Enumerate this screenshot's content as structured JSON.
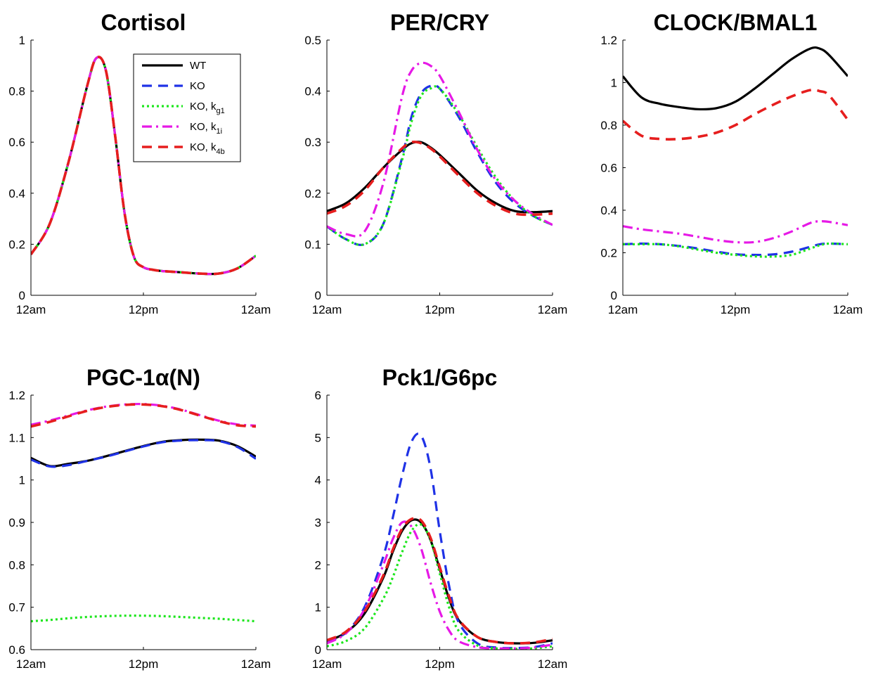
{
  "legend": {
    "entries": [
      {
        "text": "WT",
        "sub": ""
      },
      {
        "text": "KO",
        "sub": ""
      },
      {
        "text": "KO, k",
        "sub": "g1"
      },
      {
        "text": "KO, k",
        "sub": "1i"
      },
      {
        "text": "KO, k",
        "sub": "4b"
      }
    ]
  },
  "styles": {
    "WT": {
      "color": "#000000",
      "dash": "",
      "width": 3.2
    },
    "KO": {
      "color": "#1f32e6",
      "dash": "14,9",
      "width": 3.2
    },
    "KO_kg1": {
      "color": "#1ee61e",
      "dash": "3,4",
      "width": 3.2
    },
    "KO_k1i": {
      "color": "#e619e6",
      "dash": "14,6,3,6",
      "width": 3.2
    },
    "KO_k4b": {
      "color": "#e61e1e",
      "dash": "14,9",
      "width": 3.6
    }
  },
  "chart_data": [
    {
      "type": "line",
      "title": "Cortisol",
      "x_ticks": [
        "12am",
        "12pm",
        "12am"
      ],
      "xlim": [
        0,
        24
      ],
      "ylim": [
        0,
        1
      ],
      "y_ticks": [
        "0",
        "0.2",
        "0.4",
        "0.6",
        "0.8",
        "1"
      ],
      "y_tick_values": [
        0,
        0.2,
        0.4,
        0.6,
        0.8,
        1
      ],
      "x": [
        0,
        2,
        4,
        6,
        7,
        8,
        9,
        10,
        11,
        12,
        13,
        14,
        16,
        18,
        20,
        22,
        24
      ],
      "series": [
        {
          "key": "WT",
          "values": [
            0.16,
            0.28,
            0.52,
            0.82,
            0.93,
            0.88,
            0.62,
            0.32,
            0.15,
            0.11,
            0.1,
            0.095,
            0.09,
            0.085,
            0.085,
            0.105,
            0.155
          ]
        },
        {
          "key": "KO",
          "values": [
            0.16,
            0.28,
            0.52,
            0.82,
            0.93,
            0.88,
            0.62,
            0.32,
            0.15,
            0.11,
            0.1,
            0.095,
            0.09,
            0.085,
            0.085,
            0.105,
            0.155
          ]
        },
        {
          "key": "KO_kg1",
          "values": [
            0.16,
            0.28,
            0.52,
            0.82,
            0.93,
            0.88,
            0.62,
            0.32,
            0.15,
            0.11,
            0.1,
            0.095,
            0.09,
            0.085,
            0.085,
            0.105,
            0.155
          ]
        },
        {
          "key": "KO_k1i",
          "values": [
            0.16,
            0.28,
            0.52,
            0.82,
            0.93,
            0.88,
            0.62,
            0.32,
            0.15,
            0.11,
            0.1,
            0.095,
            0.09,
            0.085,
            0.085,
            0.105,
            0.155
          ]
        },
        {
          "key": "KO_k4b",
          "values": [
            0.16,
            0.28,
            0.52,
            0.82,
            0.93,
            0.88,
            0.62,
            0.32,
            0.15,
            0.11,
            0.1,
            0.095,
            0.09,
            0.085,
            0.085,
            0.105,
            0.155
          ]
        }
      ]
    },
    {
      "type": "line",
      "title": "PER/CRY",
      "x_ticks": [
        "12am",
        "12pm",
        "12am"
      ],
      "xlim": [
        0,
        24
      ],
      "ylim": [
        0,
        0.5
      ],
      "y_ticks": [
        "0",
        "0.1",
        "0.2",
        "0.3",
        "0.4",
        "0.5"
      ],
      "y_tick_values": [
        0,
        0.1,
        0.2,
        0.3,
        0.4,
        0.5
      ],
      "x": [
        0,
        2,
        4,
        6,
        8,
        9,
        10,
        11,
        12,
        14,
        16,
        18,
        20,
        22,
        24
      ],
      "series": [
        {
          "key": "WT",
          "values": [
            0.165,
            0.18,
            0.21,
            0.25,
            0.285,
            0.298,
            0.3,
            0.29,
            0.275,
            0.24,
            0.205,
            0.18,
            0.165,
            0.163,
            0.165
          ]
        },
        {
          "key": "KO",
          "values": [
            0.135,
            0.11,
            0.1,
            0.14,
            0.27,
            0.35,
            0.395,
            0.41,
            0.405,
            0.35,
            0.28,
            0.22,
            0.18,
            0.155,
            0.138
          ]
        },
        {
          "key": "KO_kg1",
          "values": [
            0.135,
            0.11,
            0.1,
            0.14,
            0.265,
            0.34,
            0.39,
            0.405,
            0.405,
            0.355,
            0.29,
            0.23,
            0.185,
            0.155,
            0.138
          ]
        },
        {
          "key": "KO_k1i",
          "values": [
            0.135,
            0.12,
            0.125,
            0.22,
            0.39,
            0.44,
            0.455,
            0.45,
            0.43,
            0.36,
            0.285,
            0.225,
            0.185,
            0.158,
            0.138
          ]
        },
        {
          "key": "KO_k4b",
          "values": [
            0.16,
            0.175,
            0.205,
            0.25,
            0.288,
            0.3,
            0.298,
            0.288,
            0.272,
            0.235,
            0.2,
            0.175,
            0.16,
            0.158,
            0.16
          ]
        }
      ]
    },
    {
      "type": "line",
      "title": "CLOCK/BMAL1",
      "x_ticks": [
        "12am",
        "12pm",
        "12am"
      ],
      "xlim": [
        0,
        24
      ],
      "ylim": [
        0,
        1.2
      ],
      "y_ticks": [
        "0",
        "0.2",
        "0.4",
        "0.6",
        "0.8",
        "1",
        "1.2"
      ],
      "y_tick_values": [
        0,
        0.2,
        0.4,
        0.6,
        0.8,
        1,
        1.2
      ],
      "x": [
        0,
        2,
        4,
        6,
        8,
        10,
        12,
        14,
        16,
        18,
        20,
        21,
        22,
        24
      ],
      "series": [
        {
          "key": "WT",
          "values": [
            1.03,
            0.93,
            0.9,
            0.885,
            0.875,
            0.88,
            0.91,
            0.97,
            1.04,
            1.11,
            1.16,
            1.16,
            1.13,
            1.03
          ]
        },
        {
          "key": "KO",
          "values": [
            0.24,
            0.243,
            0.24,
            0.232,
            0.22,
            0.205,
            0.193,
            0.19,
            0.192,
            0.205,
            0.228,
            0.24,
            0.243,
            0.24
          ]
        },
        {
          "key": "KO_kg1",
          "values": [
            0.24,
            0.24,
            0.24,
            0.23,
            0.215,
            0.2,
            0.19,
            0.183,
            0.182,
            0.19,
            0.22,
            0.235,
            0.243,
            0.24
          ]
        },
        {
          "key": "KO_k1i",
          "values": [
            0.325,
            0.31,
            0.3,
            0.29,
            0.275,
            0.26,
            0.25,
            0.25,
            0.268,
            0.3,
            0.34,
            0.348,
            0.345,
            0.33
          ]
        },
        {
          "key": "KO_k4b",
          "values": [
            0.82,
            0.75,
            0.735,
            0.735,
            0.745,
            0.765,
            0.8,
            0.85,
            0.895,
            0.935,
            0.965,
            0.96,
            0.94,
            0.825
          ]
        }
      ]
    },
    {
      "type": "line",
      "title": "PGC-1α(N)",
      "x_ticks": [
        "12am",
        "12pm",
        "12am"
      ],
      "xlim": [
        0,
        24
      ],
      "ylim": [
        0.6,
        1.2
      ],
      "y_ticks": [
        "0.6",
        "0.7",
        "0.8",
        "0.9",
        "1",
        "1.1",
        "1.2"
      ],
      "y_tick_values": [
        0.6,
        0.7,
        0.8,
        0.9,
        1,
        1.1,
        1.2
      ],
      "x": [
        0,
        2,
        4,
        6,
        8,
        10,
        12,
        14,
        16,
        18,
        20,
        22,
        24
      ],
      "series": [
        {
          "key": "WT",
          "values": [
            1.052,
            1.033,
            1.038,
            1.045,
            1.056,
            1.068,
            1.08,
            1.09,
            1.094,
            1.095,
            1.093,
            1.08,
            1.055
          ]
        },
        {
          "key": "KO",
          "values": [
            1.048,
            1.032,
            1.035,
            1.045,
            1.055,
            1.067,
            1.079,
            1.089,
            1.093,
            1.094,
            1.092,
            1.078,
            1.05
          ]
        },
        {
          "key": "KO_kg1",
          "values": [
            0.667,
            0.67,
            0.674,
            0.677,
            0.679,
            0.68,
            0.68,
            0.679,
            0.677,
            0.675,
            0.673,
            0.67,
            0.667
          ]
        },
        {
          "key": "KO_k1i",
          "values": [
            1.13,
            1.14,
            1.152,
            1.164,
            1.173,
            1.178,
            1.179,
            1.175,
            1.166,
            1.153,
            1.14,
            1.131,
            1.128
          ]
        },
        {
          "key": "KO_k4b",
          "values": [
            1.126,
            1.137,
            1.15,
            1.163,
            1.172,
            1.177,
            1.178,
            1.174,
            1.165,
            1.152,
            1.139,
            1.129,
            1.126
          ]
        }
      ]
    },
    {
      "type": "line",
      "title": "Pck1/G6pc",
      "x_ticks": [
        "12am",
        "12pm",
        "12am"
      ],
      "xlim": [
        0,
        24
      ],
      "ylim": [
        0,
        6
      ],
      "y_ticks": [
        "0",
        "1",
        "2",
        "3",
        "4",
        "5",
        "6"
      ],
      "y_tick_values": [
        0,
        1,
        2,
        3,
        4,
        5,
        6
      ],
      "x": [
        0,
        2,
        4,
        6,
        7,
        8,
        9,
        10,
        11,
        12,
        13,
        14,
        16,
        18,
        20,
        22,
        24
      ],
      "series": [
        {
          "key": "WT",
          "values": [
            0.2,
            0.4,
            0.85,
            1.7,
            2.3,
            2.8,
            3.05,
            3.0,
            2.6,
            1.9,
            1.2,
            0.7,
            0.3,
            0.18,
            0.15,
            0.16,
            0.22
          ]
        },
        {
          "key": "KO",
          "values": [
            0.18,
            0.4,
            1.0,
            2.2,
            3.1,
            4.1,
            4.9,
            5.05,
            4.3,
            2.8,
            1.5,
            0.65,
            0.15,
            0.05,
            0.04,
            0.06,
            0.15
          ]
        },
        {
          "key": "KO_kg1",
          "values": [
            0.08,
            0.2,
            0.5,
            1.2,
            1.7,
            2.3,
            2.8,
            2.95,
            2.6,
            1.8,
            1.0,
            0.45,
            0.1,
            0.03,
            0.02,
            0.03,
            0.08
          ]
        },
        {
          "key": "KO_k1i",
          "values": [
            0.15,
            0.38,
            0.95,
            2.0,
            2.6,
            3.0,
            2.9,
            2.4,
            1.6,
            0.9,
            0.45,
            0.2,
            0.06,
            0.03,
            0.03,
            0.05,
            0.12
          ]
        },
        {
          "key": "KO_k4b",
          "values": [
            0.22,
            0.42,
            0.9,
            1.75,
            2.35,
            2.85,
            3.08,
            3.05,
            2.65,
            1.95,
            1.25,
            0.72,
            0.3,
            0.18,
            0.15,
            0.17,
            0.25
          ]
        }
      ]
    }
  ]
}
